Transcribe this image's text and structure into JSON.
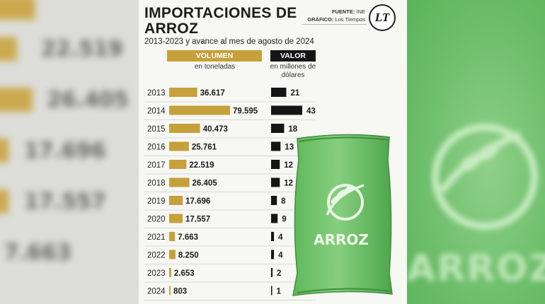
{
  "chart_data": {
    "type": "bar",
    "title": "IMPORTACIONES DE ARROZ",
    "subtitle": "2013-2023 y avance al mes de agosto de 2024",
    "source": {
      "fuente_label": "FUENTE:",
      "fuente": "INE",
      "grafico_label": "GRÁFICO:",
      "grafico": "Los Tiempos"
    },
    "logo_text": "LT",
    "categories": [
      "2013",
      "2014",
      "2015",
      "2016",
      "2017",
      "2018",
      "2019",
      "2020",
      "2021",
      "2022",
      "2023",
      "2024"
    ],
    "series": [
      {
        "name": "VOLUMEN",
        "unit": "en toneladas",
        "color": "#c6a03a",
        "values": [
          36617,
          79595,
          40473,
          25761,
          22519,
          26405,
          17696,
          17557,
          7663,
          8250,
          2653,
          803
        ],
        "labels": [
          "36.617",
          "79.595",
          "40.473",
          "25.761",
          "22.519",
          "26.405",
          "17.696",
          "17.557",
          "7.663",
          "8.250",
          "2.653",
          "803"
        ]
      },
      {
        "name": "VALOR",
        "unit": "en millones de dólares",
        "color": "#151515",
        "values": [
          21,
          43,
          18,
          13,
          12,
          12,
          8,
          9,
          4,
          4,
          2,
          1
        ],
        "labels": [
          "21",
          "43",
          "18",
          "13",
          "12",
          "12",
          "8",
          "9",
          "4",
          "4",
          "2",
          "1"
        ]
      }
    ],
    "sack_label": "ARROZ"
  },
  "background": {
    "left_numbers": [
      "22.519",
      "26.405",
      "17.696",
      "17.557",
      "7.663"
    ],
    "right_label": "ARROZ"
  }
}
